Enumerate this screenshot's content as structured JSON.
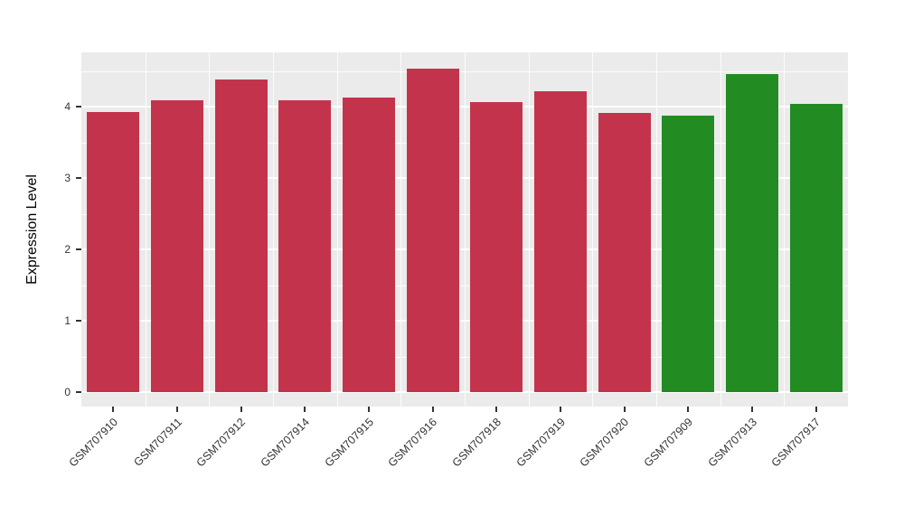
{
  "chart_data": {
    "type": "bar",
    "title": "",
    "xlabel": "",
    "ylabel": "Expression Level",
    "categories": [
      "GSM707910",
      "GSM707911",
      "GSM707912",
      "GSM707914",
      "GSM707915",
      "GSM707916",
      "GSM707918",
      "GSM707919",
      "GSM707920",
      "GSM707909",
      "GSM707913",
      "GSM707917"
    ],
    "values": [
      3.93,
      4.09,
      4.38,
      4.09,
      4.13,
      4.53,
      4.06,
      4.21,
      3.91,
      3.87,
      4.46,
      4.04
    ],
    "colors": [
      "#C3344C",
      "#C3344C",
      "#C3344C",
      "#C3344C",
      "#C3344C",
      "#C3344C",
      "#C3344C",
      "#C3344C",
      "#C3344C",
      "#228B22",
      "#228B22",
      "#228B22"
    ],
    "yticks": [
      0,
      1,
      2,
      3,
      4
    ],
    "ylim": [
      0,
      4.75
    ],
    "grid": "on",
    "legend": "none",
    "panel_bg": "#EBEBEB",
    "grid_color": "#FFFFFF",
    "tick_color": "#333333",
    "label_color": "#000000"
  }
}
